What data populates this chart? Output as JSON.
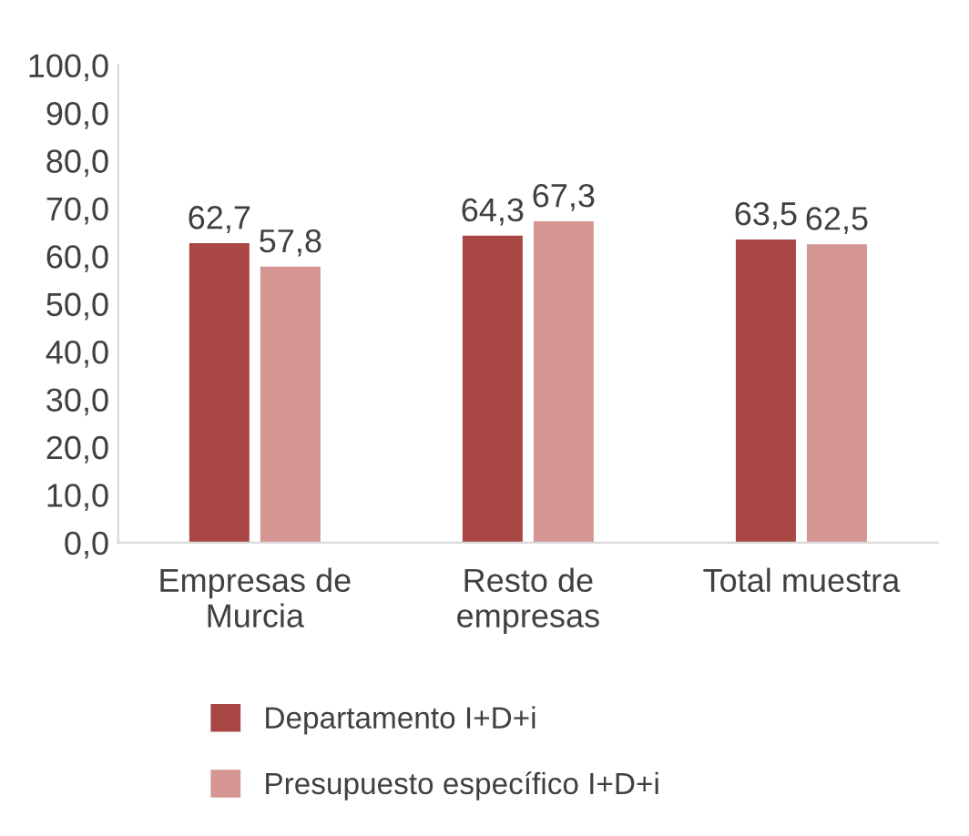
{
  "chart_data": {
    "type": "bar",
    "categories": [
      "Empresas de\nMurcia",
      "Resto de\nempresas",
      "Total muestra"
    ],
    "series": [
      {
        "name": "Departamento I+D+i",
        "color": "#a94745",
        "values": [
          62.7,
          64.3,
          63.5
        ],
        "value_labels": [
          "62,7",
          "64,3",
          "63,5"
        ]
      },
      {
        "name": "Presupuesto específico I+D+i",
        "color": "#d59593",
        "values": [
          57.8,
          67.3,
          62.5
        ],
        "value_labels": [
          "57,8",
          "67,3",
          "62,5"
        ]
      }
    ],
    "ylim": [
      0,
      100
    ],
    "yticks": [
      {
        "value": 0,
        "label": "0,0"
      },
      {
        "value": 10,
        "label": "10,0"
      },
      {
        "value": 20,
        "label": "20,0"
      },
      {
        "value": 30,
        "label": "30,0"
      },
      {
        "value": 40,
        "label": "40,0"
      },
      {
        "value": 50,
        "label": "50,0"
      },
      {
        "value": 60,
        "label": "60,0"
      },
      {
        "value": 70,
        "label": "70,0"
      },
      {
        "value": 80,
        "label": "80,0"
      },
      {
        "value": 90,
        "label": "90,0"
      },
      {
        "value": 100,
        "label": "100,0"
      }
    ],
    "grid": false,
    "legend": "bottom"
  }
}
